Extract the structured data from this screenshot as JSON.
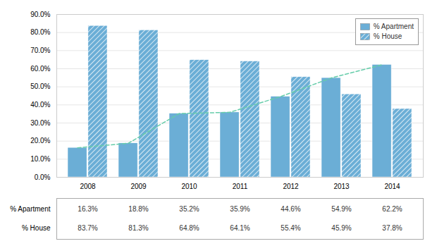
{
  "chart_data": {
    "type": "bar",
    "categories": [
      "2008",
      "2009",
      "2010",
      "2011",
      "2012",
      "2013",
      "2014"
    ],
    "series": [
      {
        "name": "% Apartment",
        "color": "#6baed6",
        "values": [
          16.3,
          18.8,
          35.2,
          35.9,
          44.6,
          54.9,
          62.2
        ],
        "value_labels": [
          "16.3%",
          "18.8%",
          "35.2%",
          "35.9%",
          "44.6%",
          "54.9%",
          "62.2%"
        ]
      },
      {
        "name": "% House",
        "color": "#6baed6",
        "values": [
          83.7,
          81.3,
          64.8,
          64.1,
          55.4,
          45.9,
          37.8
        ],
        "value_labels": [
          "83.7%",
          "81.3%",
          "64.8%",
          "64.1%",
          "55.4%",
          "45.9%",
          "37.8%"
        ]
      },
      {
        "type": "line",
        "color": "#66cdaa",
        "line_style": "dashed",
        "values": [
          16.3,
          18.8,
          35.2,
          35.9,
          44.6,
          54.9,
          62.2
        ]
      }
    ],
    "ylim": [
      0,
      90
    ],
    "yticks": [
      {
        "value": 0,
        "label": "0.0%"
      },
      {
        "value": 10,
        "label": "10.0%"
      },
      {
        "value": 20,
        "label": "20.0%"
      },
      {
        "value": 30,
        "label": "30.0%"
      },
      {
        "value": 40,
        "label": "40.0%"
      },
      {
        "value": 50,
        "label": "50.0%"
      },
      {
        "value": 60,
        "label": "60.0%"
      },
      {
        "value": 70,
        "label": "70.0%"
      },
      {
        "value": 80,
        "label": "80.0%"
      },
      {
        "value": 90,
        "label": "90.0%"
      }
    ],
    "grid": true,
    "legend": "upper right",
    "data_labels": true
  }
}
